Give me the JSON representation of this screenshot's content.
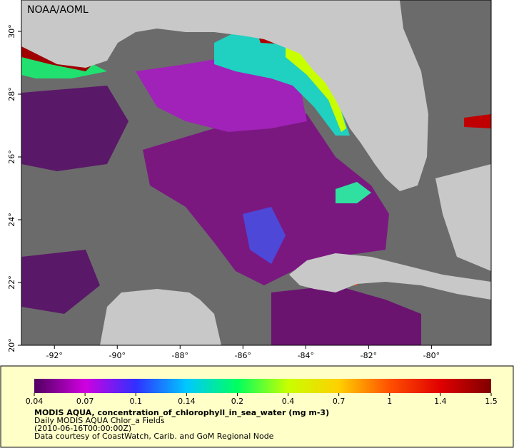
{
  "header": {
    "source": "NOAA/AOML"
  },
  "chart_data": {
    "type": "map",
    "xlim": [
      -93.05,
      -78.1
    ],
    "ylim": [
      20,
      31
    ],
    "xticks": [
      {
        "value": -92,
        "label": "-92°"
      },
      {
        "value": -90,
        "label": "-90°"
      },
      {
        "value": -88,
        "label": "-88°"
      },
      {
        "value": -86,
        "label": "-86°"
      },
      {
        "value": -84,
        "label": "-84°"
      },
      {
        "value": -82,
        "label": "-82°"
      },
      {
        "value": -80,
        "label": "-80°"
      }
    ],
    "yticks": [
      {
        "value": 20,
        "label": "20°"
      },
      {
        "value": 22,
        "label": "22°"
      },
      {
        "value": 24,
        "label": "24°"
      },
      {
        "value": 26,
        "label": "26°"
      },
      {
        "value": 28,
        "label": "28°"
      },
      {
        "value": 30,
        "label": "30°"
      }
    ],
    "colorbar": {
      "ticks": [
        0.04,
        0.07,
        0.1,
        0.14,
        0.2,
        0.4,
        0.7,
        1,
        1.4,
        1.5
      ],
      "colors": [
        "#500060",
        "#d000e0",
        "#3030ff",
        "#00c8ff",
        "#00ff60",
        "#c8ff00",
        "#ffd000",
        "#ff5000",
        "#e00000",
        "#800000"
      ]
    },
    "title": "MODIS AQUA, concentration_of_chlorophyll_in_sea_water (mg m-3)",
    "subtitle": "Daily MODIS AQUA Chlor_a Fields",
    "date": "(2010-06-16T00:00:00Z)",
    "credit": "Data courtesy of CoastWatch, Carib. and GoM Regional Node"
  }
}
